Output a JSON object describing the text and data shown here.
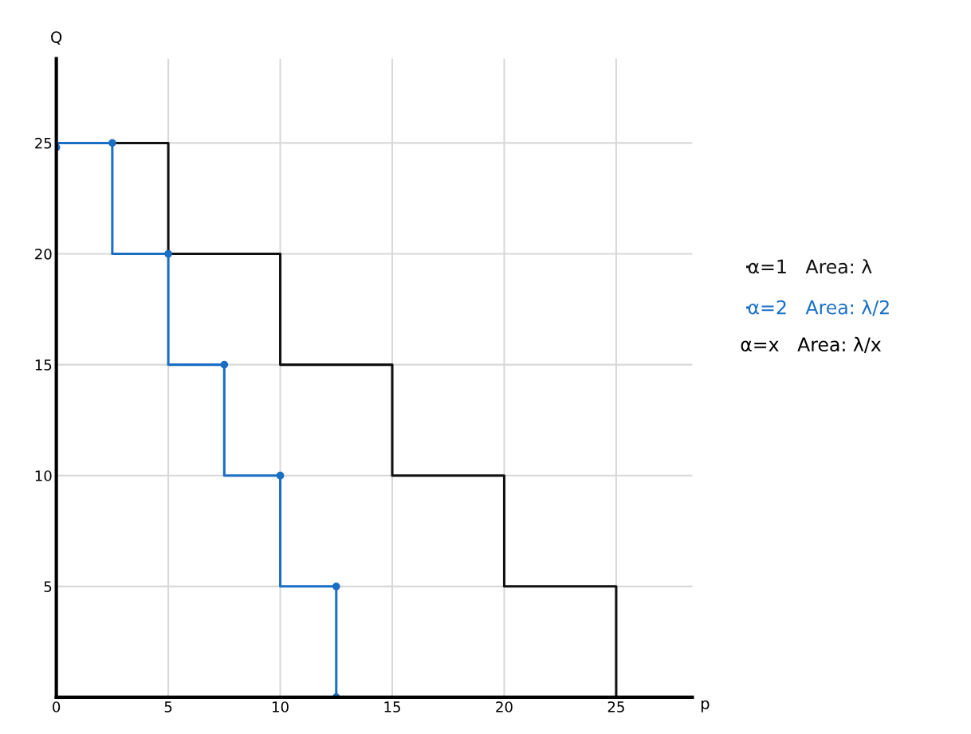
{
  "chart_data": {
    "type": "step",
    "xlabel": "p",
    "ylabel": "Q",
    "xlim": [
      0,
      28.4
    ],
    "ylim": [
      0,
      28.8
    ],
    "xticks": [
      0,
      5,
      10,
      15,
      20,
      25
    ],
    "yticks": [
      5,
      10,
      15,
      20,
      25
    ],
    "grid": true,
    "legend": "right",
    "marker": "none",
    "series": [
      {
        "name": "α=1   Area: λ",
        "color": "#111111",
        "x": [
          0,
          5,
          10,
          15,
          20,
          25,
          25
        ],
        "values": [
          25,
          25,
          20,
          15,
          10,
          5,
          0
        ]
      },
      {
        "name": "α=2   Area: λ/2",
        "color": "#1a6fc4",
        "marker": "circle",
        "x": [
          0,
          2.5,
          5,
          7.5,
          10,
          12.5,
          12.5
        ],
        "values": [
          24.8,
          25,
          20,
          15,
          10,
          5,
          0
        ]
      }
    ],
    "annotations": [
      "α=x   Area: λ/x"
    ]
  }
}
